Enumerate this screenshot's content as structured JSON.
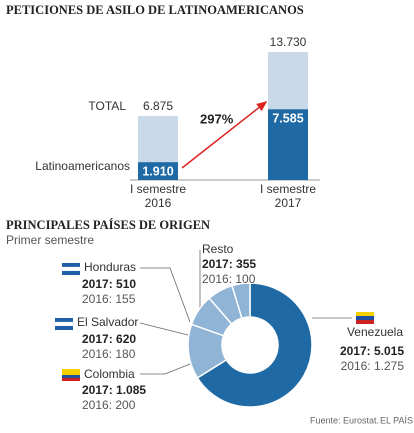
{
  "charts": [
    {
      "type": "bar",
      "title": "PETICIONES DE ASILO DE LATINOAMERICANOS",
      "categories": [
        "I semestre 2016",
        "I semestre 2017"
      ],
      "series": [
        {
          "name": "TOTAL",
          "color": "#c9d9ea",
          "values": [
            6875,
            13730
          ],
          "value_labels": [
            "6.875",
            "13.730"
          ]
        },
        {
          "name": "Latinoamericanos",
          "color": "#1f6aa5",
          "values": [
            1910,
            7585
          ],
          "value_labels": [
            "1.910",
            "7.585"
          ]
        }
      ],
      "annotation": "297%"
    },
    {
      "type": "donut",
      "title": "PRINCIPALES PAÍSES DE ORIGEN",
      "subtitle": "Primer semestre",
      "categories": [
        "Venezuela",
        "Colombia",
        "El Salvador",
        "Honduras",
        "Resto"
      ],
      "colors": [
        "#1f6aa5",
        "#8fb4d6",
        "#8fb4d6",
        "#8fb4d6",
        "#8fb4d6"
      ],
      "series": [
        {
          "name": "2017",
          "values": [
            5015,
            1085,
            620,
            510,
            355
          ],
          "value_labels": [
            "2017: 5.015",
            "2017: 1.085",
            "2017: 620",
            "2017: 510",
            "2017: 355"
          ]
        },
        {
          "name": "2016",
          "values": [
            1275,
            200,
            180,
            155,
            100
          ],
          "value_labels": [
            "2016: 1.275",
            "2016: 200",
            "2016: 180",
            "2016: 155",
            "2016: 100"
          ]
        }
      ]
    },
    {
      "type": "footer",
      "source": "Fuente: Eurostat.",
      "brand": "EL PAÍS"
    }
  ]
}
